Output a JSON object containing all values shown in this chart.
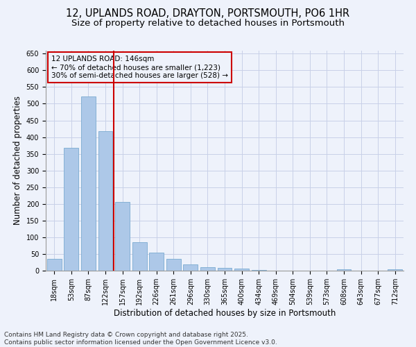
{
  "title_line1": "12, UPLANDS ROAD, DRAYTON, PORTSMOUTH, PO6 1HR",
  "title_line2": "Size of property relative to detached houses in Portsmouth",
  "xlabel": "Distribution of detached houses by size in Portsmouth",
  "ylabel": "Number of detached properties",
  "categories": [
    "18sqm",
    "53sqm",
    "87sqm",
    "122sqm",
    "157sqm",
    "192sqm",
    "226sqm",
    "261sqm",
    "296sqm",
    "330sqm",
    "365sqm",
    "400sqm",
    "434sqm",
    "469sqm",
    "504sqm",
    "539sqm",
    "573sqm",
    "608sqm",
    "643sqm",
    "677sqm",
    "712sqm"
  ],
  "values": [
    35,
    367,
    522,
    418,
    205,
    85,
    55,
    35,
    18,
    10,
    8,
    7,
    2,
    1,
    1,
    1,
    0,
    4,
    0,
    0,
    4
  ],
  "bar_color": "#adc8e8",
  "bar_edge_color": "#7aaad0",
  "vline_x": 3.5,
  "vline_color": "#cc0000",
  "annotation_title": "12 UPLANDS ROAD: 146sqm",
  "annotation_line2": "← 70% of detached houses are smaller (1,223)",
  "annotation_line3": "30% of semi-detached houses are larger (528) →",
  "annotation_box_color": "#cc0000",
  "background_color": "#eef2fb",
  "grid_color": "#c8d0e8",
  "ylim": [
    0,
    660
  ],
  "yticks": [
    0,
    50,
    100,
    150,
    200,
    250,
    300,
    350,
    400,
    450,
    500,
    550,
    600,
    650
  ],
  "footer_line1": "Contains HM Land Registry data © Crown copyright and database right 2025.",
  "footer_line2": "Contains public sector information licensed under the Open Government Licence v3.0.",
  "title_fontsize": 10.5,
  "subtitle_fontsize": 9.5,
  "axis_label_fontsize": 8.5,
  "tick_fontsize": 7,
  "annotation_fontsize": 7.5,
  "footer_fontsize": 6.5
}
